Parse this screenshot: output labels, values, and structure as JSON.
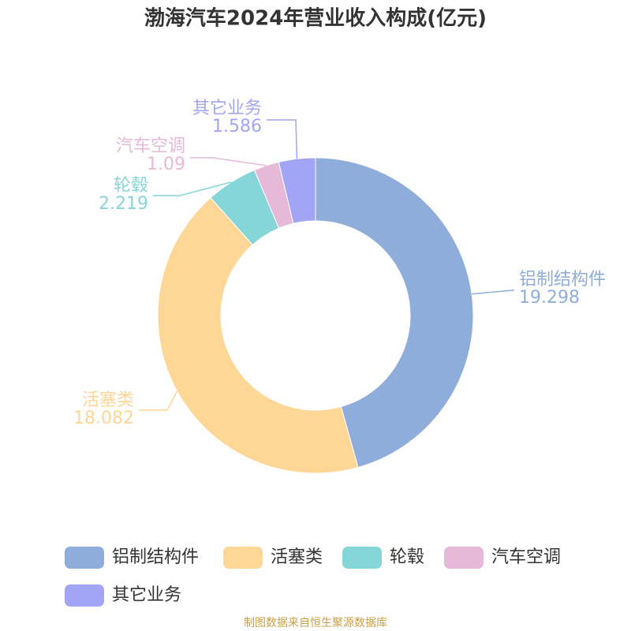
{
  "chart_data": {
    "type": "pie",
    "title": "渤海汽车2024年营业收入构成(亿元)",
    "categories": [
      "铝制结构件",
      "活塞类",
      "轮毂",
      "汽车空调",
      "其它业务"
    ],
    "values": [
      19.298,
      18.082,
      2.219,
      1.09,
      1.586
    ],
    "colors": [
      "#8fadda",
      "#fed797",
      "#86d5d8",
      "#e6b9d9",
      "#a1a5f4"
    ],
    "source": "制图数据来自恒生聚源数据库"
  }
}
